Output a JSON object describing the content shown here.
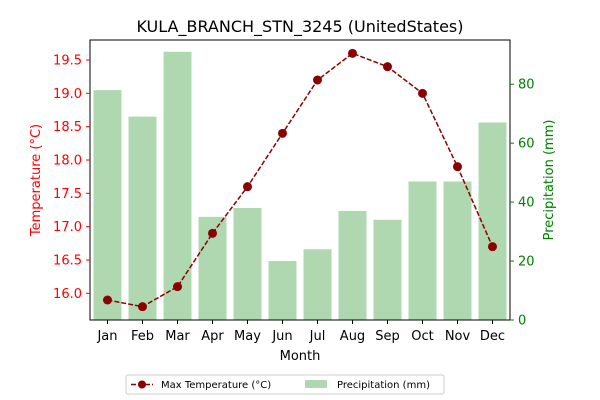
{
  "chart_data": {
    "type": "bar+line",
    "title": "KULA_BRANCH_STN_3245 (UnitedStates)",
    "xlabel": "Month",
    "categories": [
      "Jan",
      "Feb",
      "Mar",
      "Apr",
      "May",
      "Jun",
      "Jul",
      "Aug",
      "Sep",
      "Oct",
      "Nov",
      "Dec"
    ],
    "y_left": {
      "label": "Temperature (°C)",
      "range": [
        15.6,
        19.8
      ],
      "ticks": [
        16.0,
        16.5,
        17.0,
        17.5,
        18.0,
        18.5,
        19.0,
        19.5
      ],
      "tick_labels": [
        "16.0",
        "16.5",
        "17.0",
        "17.5",
        "18.0",
        "18.5",
        "19.0",
        "19.5"
      ],
      "color": "#ff0000"
    },
    "y_right": {
      "label": "Precipitation (mm)",
      "range": [
        0,
        95
      ],
      "ticks": [
        0,
        20,
        40,
        60,
        80
      ],
      "tick_labels": [
        "0",
        "20",
        "40",
        "60",
        "80"
      ],
      "color": "#008000"
    },
    "series": [
      {
        "name": "Max Temperature (°C)",
        "type": "line",
        "axis": "left",
        "color": "#8b0000",
        "values": [
          15.9,
          15.8,
          16.1,
          16.9,
          17.6,
          18.4,
          19.2,
          19.6,
          19.4,
          19.0,
          17.9,
          16.7
        ]
      },
      {
        "name": "Precipitation (mm)",
        "type": "bar",
        "axis": "right",
        "color": "#b0d8b0",
        "values": [
          78,
          69,
          91,
          35,
          38,
          20,
          24,
          37,
          34,
          47,
          47,
          67
        ]
      }
    ],
    "legend_position": "bottom-center",
    "grid": false
  }
}
